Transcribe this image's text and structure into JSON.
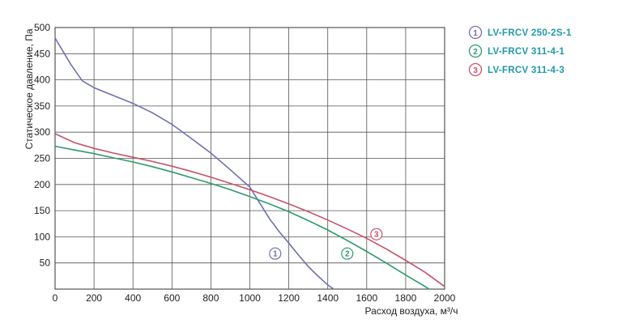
{
  "chart_data": {
    "type": "line",
    "xlabel": "Расход воздуха, м³/ч",
    "ylabel": "Статическое давление, Па",
    "xlim": [
      0,
      2000
    ],
    "ylim": [
      0,
      500
    ],
    "x_ticks": [
      0,
      200,
      400,
      600,
      800,
      1000,
      1200,
      1400,
      1600,
      1800,
      2000
    ],
    "y_ticks": [
      50,
      100,
      150,
      200,
      250,
      300,
      350,
      400,
      450,
      500
    ],
    "grid": true,
    "legend_position": "right",
    "series": [
      {
        "name": "LV-FRCV 250-2S-1",
        "marker_label": "1",
        "color": "#6f6fb2",
        "label_at": [
          1130,
          68
        ],
        "points": [
          [
            0,
            480
          ],
          [
            80,
            430
          ],
          [
            140,
            398
          ],
          [
            200,
            385
          ],
          [
            300,
            370
          ],
          [
            400,
            355
          ],
          [
            500,
            337
          ],
          [
            600,
            315
          ],
          [
            700,
            288
          ],
          [
            800,
            260
          ],
          [
            900,
            228
          ],
          [
            1000,
            195
          ],
          [
            1050,
            165
          ],
          [
            1100,
            135
          ],
          [
            1150,
            110
          ],
          [
            1200,
            88
          ],
          [
            1250,
            65
          ],
          [
            1300,
            43
          ],
          [
            1350,
            25
          ],
          [
            1400,
            8
          ],
          [
            1430,
            0
          ]
        ]
      },
      {
        "name": "LV-FRCV 311-4-1",
        "marker_label": "2",
        "color": "#2e9a6a",
        "label_at": [
          1500,
          68
        ],
        "points": [
          [
            0,
            273
          ],
          [
            100,
            266
          ],
          [
            200,
            259
          ],
          [
            300,
            251
          ],
          [
            400,
            243
          ],
          [
            500,
            234
          ],
          [
            600,
            224
          ],
          [
            700,
            213
          ],
          [
            800,
            202
          ],
          [
            900,
            190
          ],
          [
            1000,
            177
          ],
          [
            1100,
            163
          ],
          [
            1200,
            148
          ],
          [
            1300,
            131
          ],
          [
            1400,
            113
          ],
          [
            1500,
            93
          ],
          [
            1600,
            72
          ],
          [
            1700,
            50
          ],
          [
            1800,
            27
          ],
          [
            1900,
            5
          ],
          [
            1920,
            0
          ]
        ]
      },
      {
        "name": "LV-FRCV 311-4-3",
        "marker_label": "3",
        "color": "#c4536a",
        "label_at": [
          1650,
          105
        ],
        "points": [
          [
            0,
            297
          ],
          [
            100,
            280
          ],
          [
            200,
            269
          ],
          [
            300,
            260
          ],
          [
            400,
            252
          ],
          [
            500,
            244
          ],
          [
            600,
            235
          ],
          [
            700,
            225
          ],
          [
            800,
            214
          ],
          [
            900,
            202
          ],
          [
            1000,
            190
          ],
          [
            1100,
            177
          ],
          [
            1200,
            163
          ],
          [
            1300,
            148
          ],
          [
            1400,
            132
          ],
          [
            1500,
            115
          ],
          [
            1600,
            97
          ],
          [
            1700,
            77
          ],
          [
            1800,
            55
          ],
          [
            1900,
            32
          ],
          [
            2000,
            5
          ]
        ]
      }
    ]
  }
}
